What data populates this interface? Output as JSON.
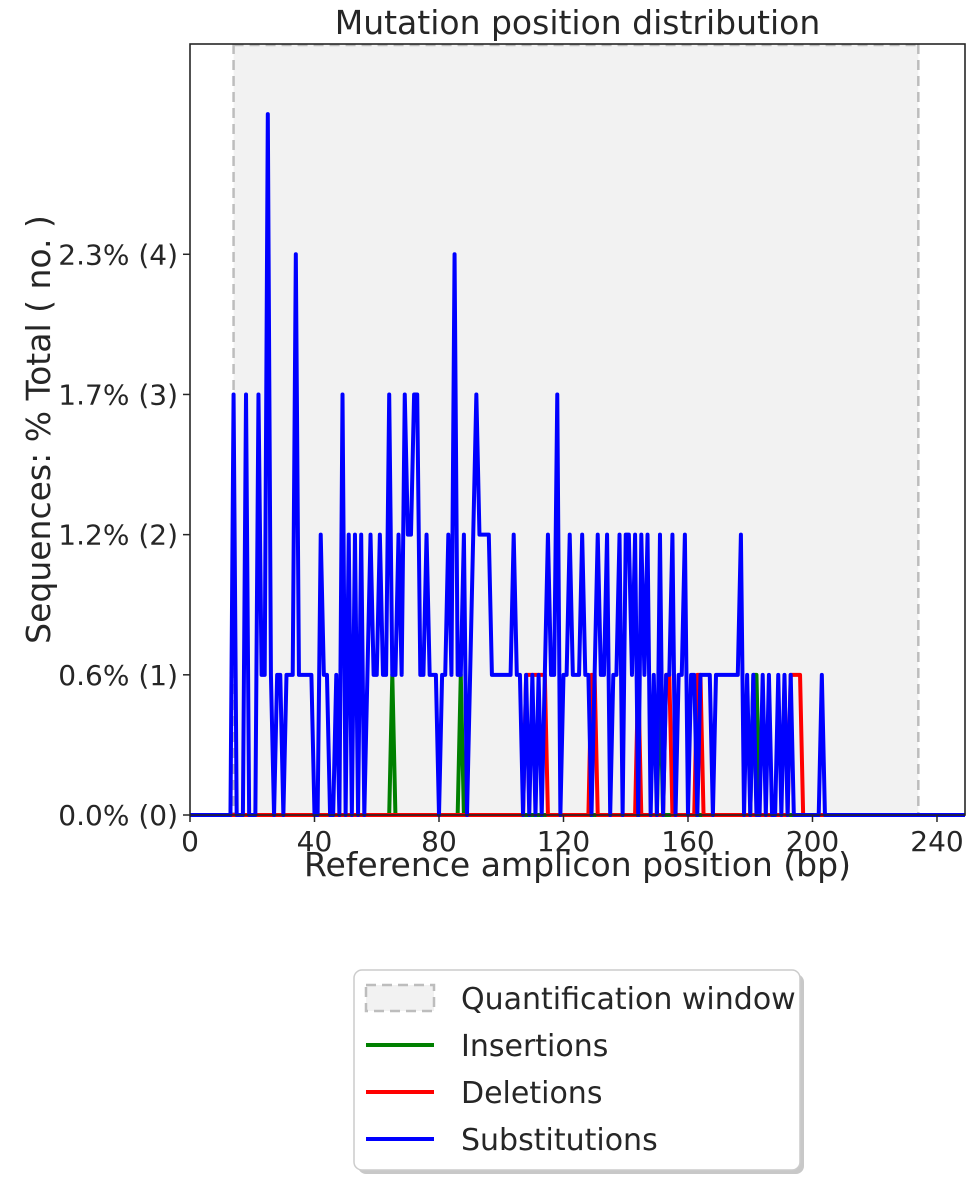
{
  "chart_data": {
    "type": "line",
    "title": "Mutation position distribution",
    "xlabel": "Reference amplicon position (bp)",
    "ylabel": "Sequences: % Total ( no. )",
    "xlim": [
      0,
      249
    ],
    "ylim": [
      0,
      5.5
    ],
    "x_ticks": [
      0,
      40,
      80,
      120,
      160,
      200,
      240
    ],
    "y_ticks": [
      {
        "value": 0,
        "label": "0.0% (0)"
      },
      {
        "value": 1,
        "label": "0.6% (1)"
      },
      {
        "value": 2,
        "label": "1.2% (2)"
      },
      {
        "value": 3,
        "label": "1.7% (3)"
      },
      {
        "value": 4,
        "label": "2.3% (4)"
      }
    ],
    "grid": false,
    "legend_position": "below",
    "quantification_window": {
      "start": 14,
      "end": 234,
      "name": "Quantification window",
      "fill": "#f2f2f2",
      "edge": "#bdbdbd"
    },
    "series": [
      {
        "name": "Insertions",
        "color": "#008000",
        "points": [
          [
            0,
            0
          ],
          [
            64,
            0
          ],
          [
            65,
            1
          ],
          [
            66,
            0
          ],
          [
            86,
            0
          ],
          [
            87,
            1
          ],
          [
            88,
            0
          ],
          [
            150,
            0
          ],
          [
            151,
            1
          ],
          [
            152,
            0
          ],
          [
            180,
            0
          ],
          [
            181,
            1
          ],
          [
            182,
            1
          ],
          [
            183,
            0
          ],
          [
            249,
            0
          ]
        ]
      },
      {
        "name": "Deletions",
        "color": "#ff0000",
        "points": [
          [
            0,
            0
          ],
          [
            107,
            0
          ],
          [
            108,
            1
          ],
          [
            109,
            1
          ],
          [
            110,
            1
          ],
          [
            111,
            1
          ],
          [
            112,
            1
          ],
          [
            113,
            1
          ],
          [
            114,
            1
          ],
          [
            115,
            0
          ],
          [
            128,
            0
          ],
          [
            129,
            1
          ],
          [
            130,
            1
          ],
          [
            131,
            0
          ],
          [
            143,
            0
          ],
          [
            144,
            1
          ],
          [
            145,
            0
          ],
          [
            152,
            0
          ],
          [
            153,
            1
          ],
          [
            154,
            1
          ],
          [
            155,
            0
          ],
          [
            162,
            0
          ],
          [
            163,
            1
          ],
          [
            164,
            1
          ],
          [
            165,
            0
          ],
          [
            192,
            0
          ],
          [
            193,
            1
          ],
          [
            194,
            1
          ],
          [
            195,
            1
          ],
          [
            196,
            1
          ],
          [
            197,
            0
          ],
          [
            249,
            0
          ]
        ]
      },
      {
        "name": "Substitutions",
        "color": "#0000ff",
        "points": [
          [
            0,
            0
          ],
          [
            13,
            0
          ],
          [
            14,
            3
          ],
          [
            15,
            0
          ],
          [
            16,
            0
          ],
          [
            17,
            0
          ],
          [
            18,
            3
          ],
          [
            19,
            0
          ],
          [
            20,
            0
          ],
          [
            21,
            0
          ],
          [
            22,
            3
          ],
          [
            23,
            1
          ],
          [
            24,
            1
          ],
          [
            25,
            5
          ],
          [
            26,
            1
          ],
          [
            27,
            0
          ],
          [
            28,
            1
          ],
          [
            29,
            1
          ],
          [
            30,
            0
          ],
          [
            31,
            1
          ],
          [
            32,
            1
          ],
          [
            33,
            1
          ],
          [
            34,
            4
          ],
          [
            35,
            1
          ],
          [
            36,
            1
          ],
          [
            37,
            1
          ],
          [
            38,
            1
          ],
          [
            39,
            1
          ],
          [
            40,
            0
          ],
          [
            41,
            0
          ],
          [
            42,
            2
          ],
          [
            43,
            1
          ],
          [
            44,
            1
          ],
          [
            45,
            0
          ],
          [
            46,
            0
          ],
          [
            47,
            1
          ],
          [
            48,
            0
          ],
          [
            49,
            3
          ],
          [
            50,
            0
          ],
          [
            51,
            2
          ],
          [
            52,
            0
          ],
          [
            53,
            2
          ],
          [
            54,
            0
          ],
          [
            55,
            2
          ],
          [
            56,
            0
          ],
          [
            57,
            1
          ],
          [
            58,
            2
          ],
          [
            59,
            1
          ],
          [
            60,
            1
          ],
          [
            61,
            2
          ],
          [
            62,
            1
          ],
          [
            63,
            1
          ],
          [
            64,
            3
          ],
          [
            65,
            1
          ],
          [
            66,
            1
          ],
          [
            67,
            2
          ],
          [
            68,
            1
          ],
          [
            69,
            3
          ],
          [
            70,
            2
          ],
          [
            71,
            2
          ],
          [
            72,
            3
          ],
          [
            73,
            3
          ],
          [
            74,
            1
          ],
          [
            75,
            1
          ],
          [
            76,
            2
          ],
          [
            77,
            1
          ],
          [
            78,
            1
          ],
          [
            79,
            1
          ],
          [
            80,
            0
          ],
          [
            81,
            1
          ],
          [
            82,
            1
          ],
          [
            83,
            2
          ],
          [
            84,
            1
          ],
          [
            85,
            4
          ],
          [
            86,
            1
          ],
          [
            87,
            1
          ],
          [
            88,
            2
          ],
          [
            89,
            0
          ],
          [
            90,
            1
          ],
          [
            91,
            2
          ],
          [
            92,
            3
          ],
          [
            93,
            2
          ],
          [
            94,
            2
          ],
          [
            95,
            2
          ],
          [
            96,
            2
          ],
          [
            97,
            1
          ],
          [
            98,
            1
          ],
          [
            99,
            1
          ],
          [
            100,
            1
          ],
          [
            101,
            1
          ],
          [
            102,
            1
          ],
          [
            103,
            1
          ],
          [
            104,
            2
          ],
          [
            105,
            1
          ],
          [
            106,
            1
          ],
          [
            107,
            0
          ],
          [
            108,
            1
          ],
          [
            109,
            0
          ],
          [
            110,
            1
          ],
          [
            111,
            0
          ],
          [
            112,
            1
          ],
          [
            113,
            0
          ],
          [
            114,
            1
          ],
          [
            115,
            2
          ],
          [
            116,
            1
          ],
          [
            117,
            1
          ],
          [
            118,
            3
          ],
          [
            119,
            0
          ],
          [
            120,
            1
          ],
          [
            121,
            1
          ],
          [
            122,
            2
          ],
          [
            123,
            1
          ],
          [
            124,
            1
          ],
          [
            125,
            1
          ],
          [
            126,
            2
          ],
          [
            127,
            1
          ],
          [
            128,
            1
          ],
          [
            129,
            0
          ],
          [
            130,
            1
          ],
          [
            131,
            2
          ],
          [
            132,
            1
          ],
          [
            133,
            1
          ],
          [
            134,
            2
          ],
          [
            135,
            0
          ],
          [
            136,
            1
          ],
          [
            137,
            1
          ],
          [
            138,
            2
          ],
          [
            139,
            0
          ],
          [
            140,
            2
          ],
          [
            141,
            2
          ],
          [
            142,
            1
          ],
          [
            143,
            2
          ],
          [
            144,
            0
          ],
          [
            145,
            2
          ],
          [
            146,
            1
          ],
          [
            147,
            2
          ],
          [
            148,
            0
          ],
          [
            149,
            1
          ],
          [
            150,
            0
          ],
          [
            151,
            2
          ],
          [
            152,
            0
          ],
          [
            153,
            1
          ],
          [
            154,
            1
          ],
          [
            155,
            2
          ],
          [
            156,
            0
          ],
          [
            157,
            1
          ],
          [
            158,
            1
          ],
          [
            159,
            2
          ],
          [
            160,
            0
          ],
          [
            161,
            1
          ],
          [
            162,
            1
          ],
          [
            163,
            0
          ],
          [
            164,
            1
          ],
          [
            165,
            1
          ],
          [
            166,
            1
          ],
          [
            167,
            1
          ],
          [
            168,
            0
          ],
          [
            169,
            1
          ],
          [
            170,
            1
          ],
          [
            171,
            1
          ],
          [
            172,
            1
          ],
          [
            173,
            1
          ],
          [
            174,
            1
          ],
          [
            175,
            1
          ],
          [
            176,
            1
          ],
          [
            177,
            2
          ],
          [
            178,
            0
          ],
          [
            179,
            1
          ],
          [
            180,
            0
          ],
          [
            181,
            1
          ],
          [
            182,
            0
          ],
          [
            183,
            0
          ],
          [
            184,
            1
          ],
          [
            185,
            0
          ],
          [
            186,
            1
          ],
          [
            187,
            0
          ],
          [
            188,
            0
          ],
          [
            189,
            1
          ],
          [
            190,
            0
          ],
          [
            191,
            1
          ],
          [
            192,
            0
          ],
          [
            193,
            1
          ],
          [
            194,
            0
          ],
          [
            195,
            0
          ],
          [
            196,
            0
          ],
          [
            197,
            0
          ],
          [
            198,
            0
          ],
          [
            199,
            0
          ],
          [
            200,
            0
          ],
          [
            201,
            0
          ],
          [
            202,
            0
          ],
          [
            203,
            1
          ],
          [
            204,
            0
          ],
          [
            249,
            0
          ]
        ]
      }
    ]
  }
}
